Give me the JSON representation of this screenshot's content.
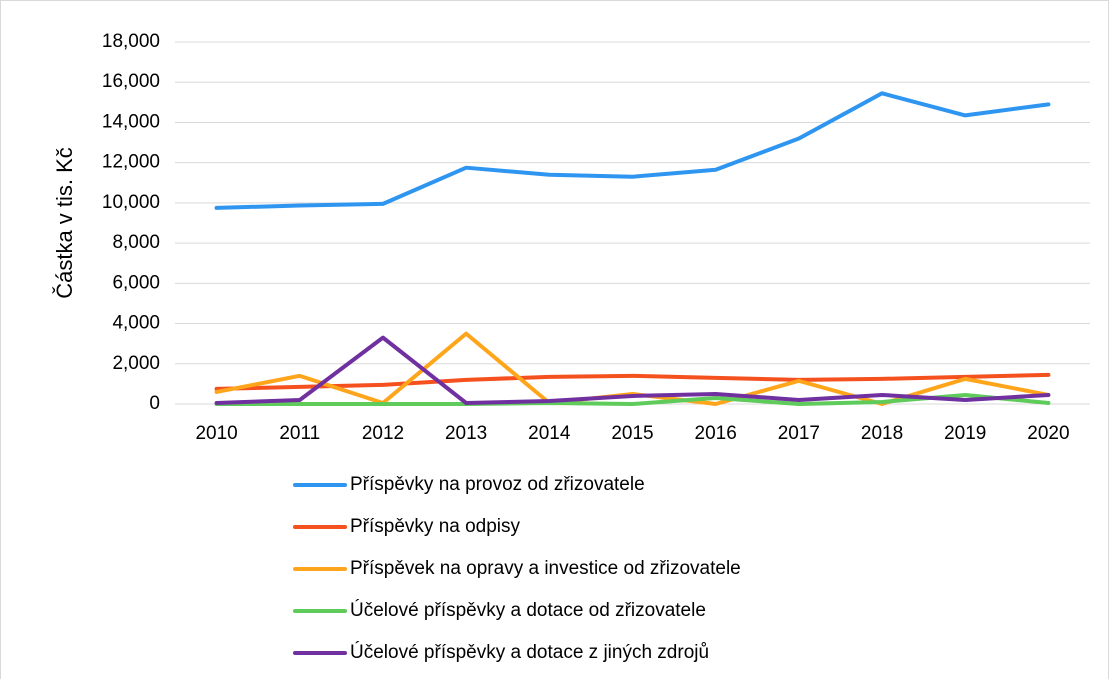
{
  "chart_data": {
    "type": "line",
    "y_label": "Částka v tis. Kč",
    "categories": [
      "2010",
      "2011",
      "2012",
      "2013",
      "2014",
      "2015",
      "2016",
      "2017",
      "2018",
      "2019",
      "2020"
    ],
    "series": [
      {
        "name": "Příspěvky na provoz od zřizovatele",
        "color": "#2e96f0",
        "values": [
          9750,
          9870,
          9950,
          11750,
          11400,
          11300,
          11650,
          13200,
          15450,
          14350,
          14900
        ]
      },
      {
        "name": "Příspěvky na odpisy",
        "color": "#f4511e",
        "values": [
          750,
          850,
          950,
          1200,
          1350,
          1400,
          1300,
          1200,
          1250,
          1350,
          1450
        ]
      },
      {
        "name": "Příspěvek na opravy a investice od zřizovatele",
        "color": "#ffa51b",
        "values": [
          600,
          1400,
          50,
          3500,
          50,
          500,
          0,
          1150,
          0,
          1250,
          450
        ]
      },
      {
        "name": "Účelové příspěvky a dotace od zřizovatele",
        "color": "#5ecb5b",
        "values": [
          0,
          0,
          0,
          0,
          50,
          0,
          300,
          0,
          100,
          450,
          50
        ]
      },
      {
        "name": "Účelové příspěvky a dotace z jiných zdrojů",
        "color": "#7030a0",
        "values": [
          50,
          200,
          3300,
          50,
          150,
          400,
          500,
          200,
          450,
          200,
          450
        ]
      }
    ],
    "ylim": [
      0,
      18000
    ],
    "yticks": [
      0,
      {
        "value": 2000,
        "label": "2,000"
      },
      {
        "value": 4000,
        "label": "4,000"
      },
      {
        "value": 6000,
        "label": "6,000"
      },
      {
        "value": 8000,
        "label": "8,000"
      },
      {
        "value": 10000,
        "label": "10,000"
      },
      {
        "value": 12000,
        "label": "12,000"
      },
      {
        "value": 14000,
        "label": "14,000"
      },
      {
        "value": 16000,
        "label": "16,000"
      },
      {
        "value": 18000,
        "label": "18,000"
      }
    ],
    "grid": true,
    "legend": "bottom"
  }
}
